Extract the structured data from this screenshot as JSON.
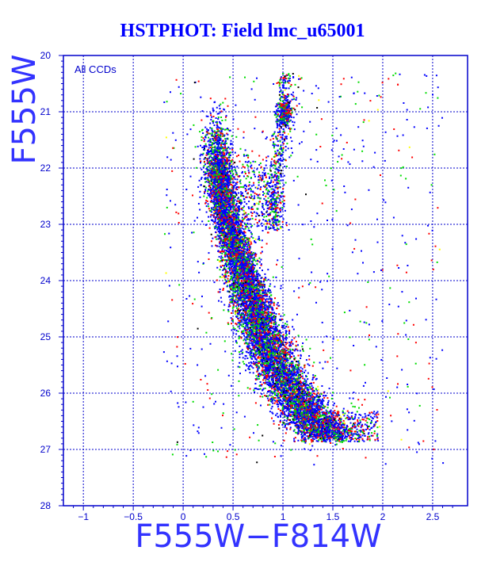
{
  "title": "HSTPHOT: Field lmc_u65001",
  "colors": {
    "axis": "#0000cc",
    "grid": "#0000cc",
    "title": "#0000ff",
    "points": [
      "#0000ff",
      "#00dd00",
      "#ff0000",
      "#000000",
      "#ffff00"
    ]
  },
  "chart_data": {
    "type": "scatter",
    "title": "HSTPHOT: Field lmc_u65001",
    "xlabel": "F555W−F814W",
    "ylabel": "F555W",
    "annotation": "All CCDs",
    "xlim": [
      -1.2,
      2.85
    ],
    "ylim": [
      28,
      20
    ],
    "y_inverted": true,
    "grid": true,
    "x_ticks": [
      -1,
      -0.5,
      0,
      0.5,
      1,
      1.5,
      2,
      2.5
    ],
    "x_tick_labels": [
      "−1",
      "−0.5",
      "0",
      "0.5",
      "1",
      "1.5",
      "2",
      "2.5"
    ],
    "y_ticks": [
      20,
      21,
      22,
      23,
      24,
      25,
      26,
      27,
      28
    ],
    "y_tick_labels": [
      "20",
      "21",
      "22",
      "23",
      "24",
      "25",
      "26",
      "27",
      "28"
    ],
    "series_note": "Points colored by CCD chip (blue, green, red, black, yellow); dense color-magnitude diagram of the LMC field.",
    "features": [
      {
        "name": "main_sequence_ridge",
        "points": [
          [
            0.36,
            22.0
          ],
          [
            0.42,
            22.8
          ],
          [
            0.55,
            23.6
          ],
          [
            0.68,
            24.4
          ],
          [
            0.85,
            25.2
          ],
          [
            1.05,
            25.9
          ],
          [
            1.3,
            26.5
          ],
          [
            1.5,
            26.8
          ]
        ]
      },
      {
        "name": "turnoff_blue_clump",
        "points": [
          [
            0.35,
            21.8
          ],
          [
            0.4,
            22.5
          ]
        ]
      },
      {
        "name": "red_giant_branch",
        "points": [
          [
            1.0,
            21.0
          ],
          [
            1.0,
            22.0
          ],
          [
            0.95,
            22.8
          ]
        ]
      },
      {
        "name": "red_clump",
        "points": [
          [
            1.0,
            21.0
          ]
        ]
      }
    ]
  }
}
